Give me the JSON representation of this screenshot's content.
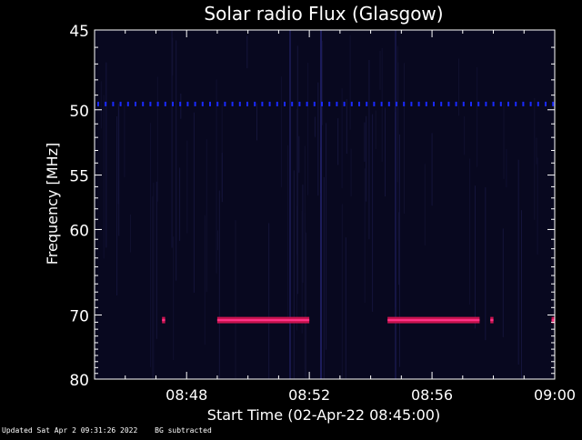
{
  "chart_data": {
    "type": "heatmap",
    "title": "Solar radio Flux (Glasgow)",
    "xlabel": "Start Time (02-Apr-22 08:45:00)",
    "ylabel": "Frequency [MHz]",
    "x_ticks": [
      "08:48",
      "08:52",
      "08:56",
      "09:00"
    ],
    "x_tick_minutes": [
      48,
      52,
      56,
      60
    ],
    "xlim_minutes": [
      45,
      60
    ],
    "y_ticks": [
      45,
      50,
      55,
      60,
      70,
      80
    ],
    "y_scale": "reciprocal",
    "ylim": [
      45,
      80
    ],
    "background_color": "#08081f",
    "colors": {
      "interference_line": "#1a2aff",
      "signal_band": "#c81450",
      "signal_core": "#ff3388"
    },
    "interference": [
      {
        "frequency_mhz": 49.6,
        "x_range_minutes": [
          45.0,
          60.0
        ],
        "pattern": "dotted"
      }
    ],
    "signal_segments": [
      {
        "frequency_mhz": 70.7,
        "x_start_minutes": 47.2,
        "x_end_minutes": 47.3
      },
      {
        "frequency_mhz": 70.7,
        "x_start_minutes": 49.0,
        "x_end_minutes": 52.0
      },
      {
        "frequency_mhz": 70.7,
        "x_start_minutes": 54.55,
        "x_end_minutes": 57.55
      },
      {
        "frequency_mhz": 70.7,
        "x_start_minutes": 57.9,
        "x_end_minutes": 58.0
      },
      {
        "frequency_mhz": 70.7,
        "x_start_minutes": 59.9,
        "x_end_minutes": 60.0
      }
    ]
  },
  "footer": {
    "updated": "Updated Sat Apr  2 09:31:26 2022",
    "note": "BG subtracted"
  }
}
